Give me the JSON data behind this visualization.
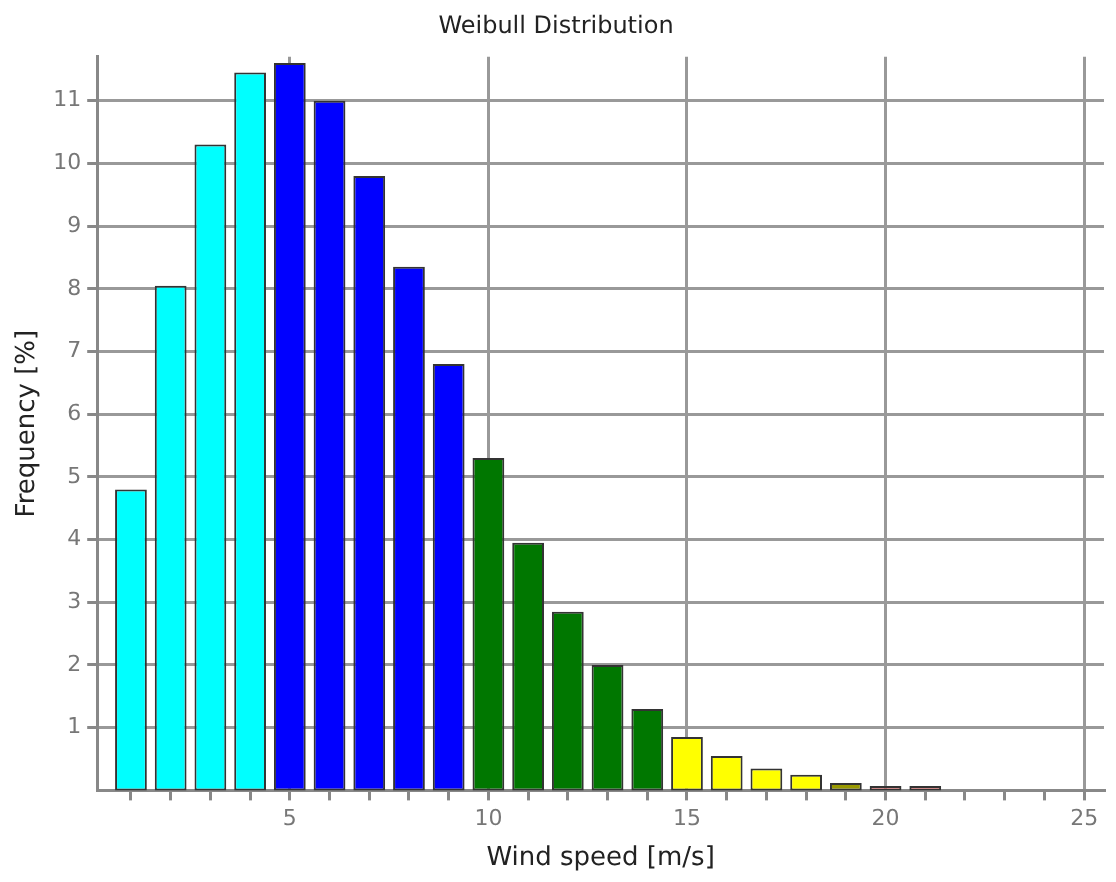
{
  "chart_data": {
    "type": "histogram",
    "title": "Weibull Distribution",
    "xlabel": "Wind speed [m/s]",
    "ylabel": "Frequency [%]",
    "bins": [
      0.5,
      1.5,
      2.5,
      3.5,
      4.5,
      5.5,
      6.5,
      7.5,
      8.5,
      9.5,
      10.5,
      11.5,
      12.5,
      13.5,
      14.5,
      15.5,
      16.5,
      17.5,
      18.5,
      19.5,
      20.5,
      21.5
    ],
    "values": [
      4.8,
      8.05,
      10.3,
      11.45,
      11.6,
      11.0,
      9.8,
      8.35,
      6.8,
      5.3,
      3.95,
      2.85,
      2.0,
      1.3,
      0.85,
      0.55,
      0.35,
      0.25,
      0.12,
      0.07,
      0.07
    ],
    "colors": [
      "#00ffff",
      "#00ffff",
      "#00ffff",
      "#00ffff",
      "#0000ff",
      "#0000ff",
      "#0000ff",
      "#0000ff",
      "#0000ff",
      "#007700",
      "#007700",
      "#007700",
      "#007700",
      "#007700",
      "#ffff00",
      "#ffff00",
      "#ffff00",
      "#ffff00",
      "#999900",
      "#ff7777",
      "#ff7777"
    ],
    "xlim": [
      0.15,
      25.5
    ],
    "xticks": [
      {
        "value": 1,
        "label": null
      },
      {
        "value": 2,
        "label": null
      },
      {
        "value": 3,
        "label": null
      },
      {
        "value": 4,
        "label": null
      },
      5,
      {
        "value": 6,
        "label": null
      },
      {
        "value": 7,
        "label": null
      },
      {
        "value": 8,
        "label": null
      },
      {
        "value": 9,
        "label": null
      },
      10,
      {
        "value": 11,
        "label": null
      },
      {
        "value": 12,
        "label": null
      },
      {
        "value": 13,
        "label": null
      },
      {
        "value": 14,
        "label": null
      },
      15,
      {
        "value": 16,
        "label": null
      },
      {
        "value": 17,
        "label": null
      },
      {
        "value": 18,
        "label": null
      },
      {
        "value": 19,
        "label": null
      },
      20,
      {
        "value": 21,
        "label": null
      },
      {
        "value": 22,
        "label": null
      },
      {
        "value": 23,
        "label": null
      },
      {
        "value": 24,
        "label": null
      },
      25
    ],
    "ylim": [
      0,
      11.7
    ],
    "yticks": [
      1,
      2,
      3,
      4,
      5,
      6,
      7,
      8,
      9,
      10,
      11
    ],
    "grid": true,
    "legend": false
  }
}
